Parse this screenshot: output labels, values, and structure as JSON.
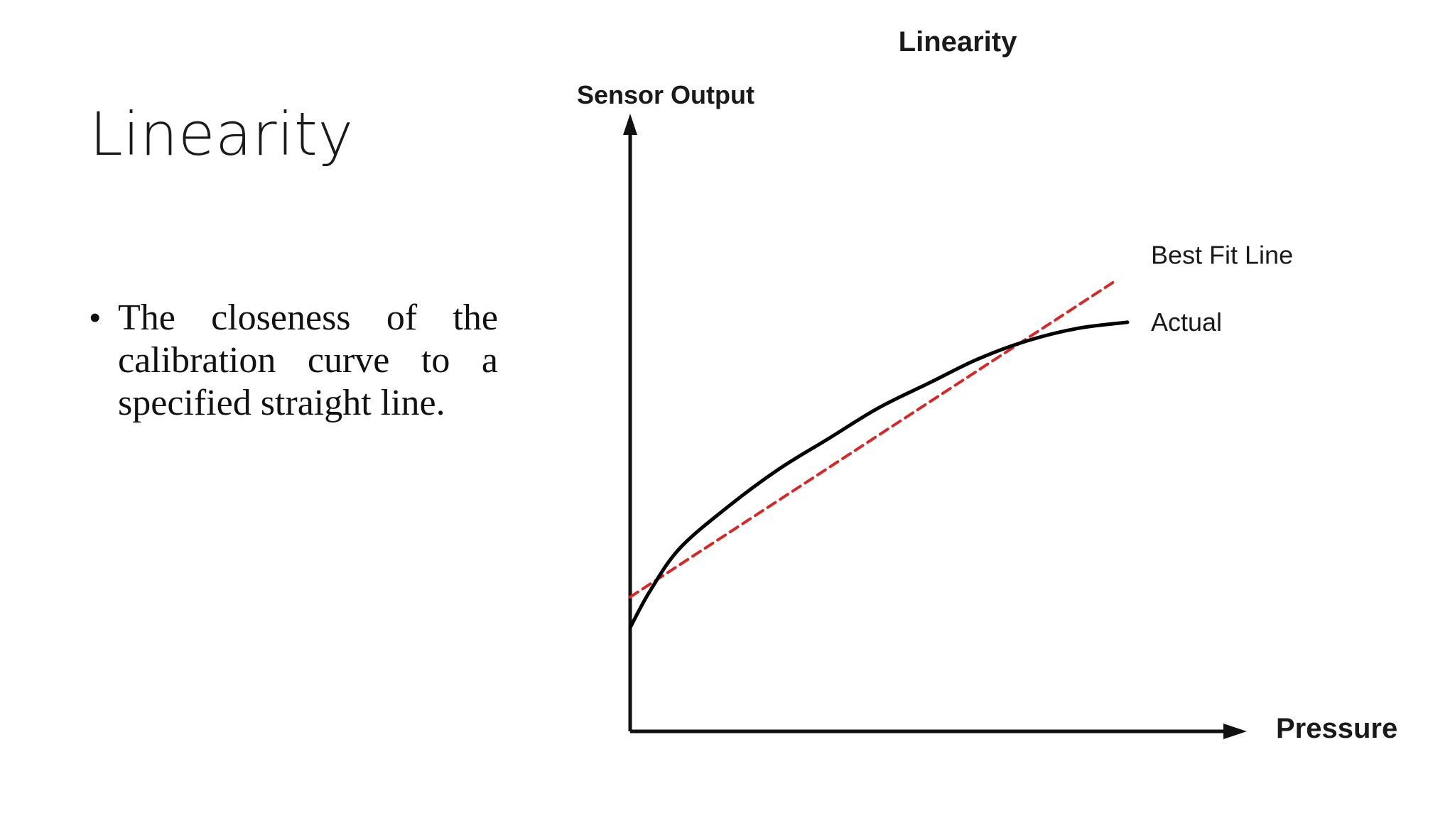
{
  "slide": {
    "title": "Linearity",
    "bullets": [
      "The closeness of the calibration curve to a specified straight line."
    ]
  },
  "chart_data": {
    "type": "line",
    "title": "Linearity",
    "xlabel": "Pressure",
    "ylabel": "Sensor Output",
    "xlim": [
      0,
      100
    ],
    "ylim": [
      0,
      100
    ],
    "grid": false,
    "series": [
      {
        "name": "Best Fit Line",
        "style": "dashed",
        "color": "#d62828",
        "x": [
          0,
          98
        ],
        "y": [
          22,
          74
        ]
      },
      {
        "name": "Actual",
        "style": "solid",
        "color": "#000000",
        "x": [
          0,
          4,
          10,
          20,
          30,
          40,
          50,
          60,
          70,
          80,
          90,
          100
        ],
        "y": [
          17,
          23,
          30,
          37,
          43,
          48,
          53,
          57,
          61,
          64,
          66,
          67
        ]
      }
    ]
  }
}
